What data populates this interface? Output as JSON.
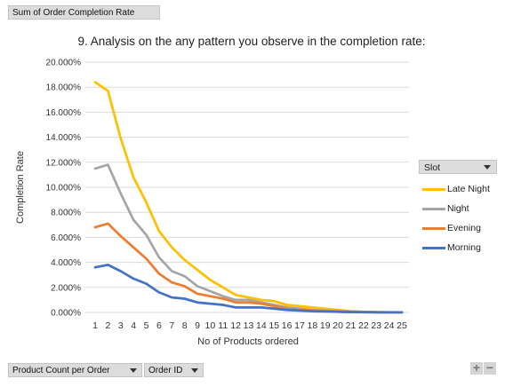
{
  "pivot": {
    "value_field": "Sum of Order Completion Rate",
    "axis_fields": [
      "Product Count per Order",
      "Order ID"
    ]
  },
  "legend": {
    "field": "Slot",
    "items": [
      {
        "name": "Late Night",
        "color": "#FFC000"
      },
      {
        "name": "Night",
        "color": "#A5A5A5"
      },
      {
        "name": "Evening",
        "color": "#ED7D31"
      },
      {
        "name": "Morning",
        "color": "#4472C4"
      }
    ]
  },
  "controls": {
    "zoom_in": "+",
    "zoom_out": "−"
  },
  "chart_data": {
    "type": "line",
    "title": "9. Analysis on the any pattern you observe in the completion rate:",
    "xlabel": "No of Products ordered",
    "ylabel": "Completion Rate",
    "x": [
      "1",
      "2",
      "3",
      "4",
      "5",
      "6",
      "7",
      "8",
      "9",
      "10",
      "11",
      "12",
      "13",
      "14",
      "15",
      "16",
      "17",
      "18",
      "19",
      "20",
      "21",
      "22",
      "23",
      "24",
      "25"
    ],
    "ylim": [
      0,
      0.2
    ],
    "ytick_step": 0.02,
    "ytick_labels": [
      "0.000%",
      "2.000%",
      "4.000%",
      "6.000%",
      "8.000%",
      "10.000%",
      "12.000%",
      "14.000%",
      "16.000%",
      "18.000%",
      "20.000%"
    ],
    "grid": true,
    "legend_position": "right",
    "series": [
      {
        "name": "Late Night",
        "color": "#FFC000",
        "values": [
          0.184,
          0.177,
          0.139,
          0.108,
          0.088,
          0.065,
          0.052,
          0.042,
          0.034,
          0.026,
          0.02,
          0.014,
          0.012,
          0.01,
          0.009,
          0.006,
          0.005,
          0.004,
          0.003,
          0.002,
          0.001,
          0.0006,
          0.0003,
          0.0002,
          0.0001
        ]
      },
      {
        "name": "Night",
        "color": "#A5A5A5",
        "values": [
          0.115,
          0.118,
          0.095,
          0.074,
          0.062,
          0.044,
          0.033,
          0.029,
          0.021,
          0.017,
          0.013,
          0.01,
          0.01,
          0.008,
          0.006,
          0.004,
          0.003,
          0.002,
          0.0015,
          0.001,
          0.0007,
          0.0004,
          0.0002,
          0.0001,
          0.0001
        ]
      },
      {
        "name": "Evening",
        "color": "#ED7D31",
        "values": [
          0.068,
          0.071,
          0.061,
          0.052,
          0.043,
          0.031,
          0.024,
          0.021,
          0.015,
          0.013,
          0.011,
          0.008,
          0.008,
          0.007,
          0.005,
          0.003,
          0.002,
          0.0015,
          0.001,
          0.0008,
          0.0005,
          0.0003,
          0.0002,
          0.0001,
          0.0001
        ]
      },
      {
        "name": "Morning",
        "color": "#4472C4",
        "values": [
          0.036,
          0.038,
          0.033,
          0.027,
          0.023,
          0.016,
          0.012,
          0.011,
          0.008,
          0.007,
          0.006,
          0.004,
          0.004,
          0.004,
          0.003,
          0.002,
          0.0015,
          0.001,
          0.0008,
          0.0005,
          0.0003,
          0.0002,
          0.0001,
          0.0001,
          0.0001
        ]
      }
    ]
  }
}
